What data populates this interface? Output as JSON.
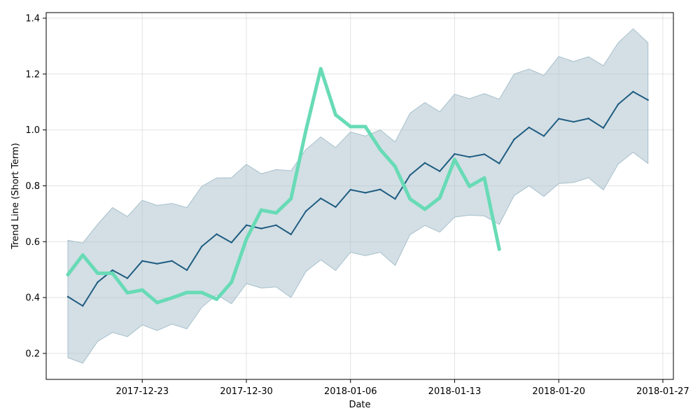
{
  "chart_data": {
    "type": "line",
    "title": "",
    "xlabel": "Date",
    "ylabel": "Trend Line (Short Term)",
    "x_dates": [
      "2017-12-18",
      "2017-12-19",
      "2017-12-20",
      "2017-12-21",
      "2017-12-22",
      "2017-12-23",
      "2017-12-24",
      "2017-12-25",
      "2017-12-26",
      "2017-12-27",
      "2017-12-28",
      "2017-12-29",
      "2017-12-30",
      "2017-12-31",
      "2018-01-01",
      "2018-01-02",
      "2018-01-03",
      "2018-01-04",
      "2018-01-05",
      "2018-01-06",
      "2018-01-07",
      "2018-01-08",
      "2018-01-09",
      "2018-01-10",
      "2018-01-11",
      "2018-01-12",
      "2018-01-13",
      "2018-01-14",
      "2018-01-15",
      "2018-01-16",
      "2018-01-17",
      "2018-01-18",
      "2018-01-19",
      "2018-01-20",
      "2018-01-21",
      "2018-01-22",
      "2018-01-23",
      "2018-01-24",
      "2018-01-25",
      "2018-01-26"
    ],
    "xlim": [
      "2017-12-16T13:00",
      "2018-01-27T17:00"
    ],
    "ylim": [
      0.107,
      1.42
    ],
    "x_ticks": [
      "2017-12-23",
      "2017-12-30",
      "2018-01-06",
      "2018-01-13",
      "2018-01-20",
      "2018-01-27"
    ],
    "y_ticks": [
      0.2,
      0.4,
      0.6,
      0.8,
      1.0,
      1.2,
      1.4
    ],
    "y_tick_labels": [
      "0.2",
      "0.4",
      "0.6",
      "0.8",
      "1.0",
      "1.2",
      "1.4"
    ],
    "grid": true,
    "series": [
      {
        "kind": "band",
        "color": "#a7bfcc",
        "lower": [
          0.185,
          0.165,
          0.243,
          0.275,
          0.26,
          0.302,
          0.282,
          0.305,
          0.288,
          0.365,
          0.41,
          0.378,
          0.45,
          0.434,
          0.438,
          0.4,
          0.493,
          0.535,
          0.497,
          0.562,
          0.55,
          0.562,
          0.515,
          0.625,
          0.658,
          0.634,
          0.688,
          0.695,
          0.692,
          0.662,
          0.765,
          0.8,
          0.762,
          0.808,
          0.812,
          0.829,
          0.785,
          0.878,
          0.92,
          0.88
        ],
        "upper": [
          0.605,
          0.595,
          0.662,
          0.722,
          0.69,
          0.748,
          0.73,
          0.737,
          0.722,
          0.798,
          0.828,
          0.829,
          0.877,
          0.843,
          0.858,
          0.854,
          0.93,
          0.975,
          0.937,
          0.993,
          0.978,
          1.0,
          0.957,
          1.06,
          1.098,
          1.065,
          1.128,
          1.112,
          1.13,
          1.11,
          1.2,
          1.218,
          1.195,
          1.263,
          1.245,
          1.262,
          1.23,
          1.312,
          1.362,
          1.312
        ]
      },
      {
        "kind": "line",
        "color": "#1f5c80",
        "values": [
          0.403,
          0.37,
          0.455,
          0.498,
          0.469,
          0.531,
          0.521,
          0.531,
          0.498,
          0.583,
          0.627,
          0.597,
          0.659,
          0.647,
          0.659,
          0.626,
          0.709,
          0.755,
          0.724,
          0.786,
          0.775,
          0.787,
          0.753,
          0.838,
          0.882,
          0.852,
          0.914,
          0.903,
          0.913,
          0.88,
          0.966,
          1.009,
          0.978,
          1.04,
          1.029,
          1.041,
          1.007,
          1.092,
          1.137,
          1.107
        ]
      },
      {
        "kind": "line",
        "color": "#68dbb6",
        "values": [
          0.482,
          0.552,
          0.487,
          0.487,
          0.417,
          0.427,
          0.382,
          0.399,
          0.418,
          0.418,
          0.394,
          0.455,
          0.609,
          0.713,
          0.703,
          0.754,
          0.998,
          1.219,
          1.054,
          1.012,
          1.012,
          0.93,
          0.869,
          0.753,
          0.716,
          0.757,
          0.894,
          0.798,
          0.828,
          0.573
        ]
      }
    ]
  }
}
